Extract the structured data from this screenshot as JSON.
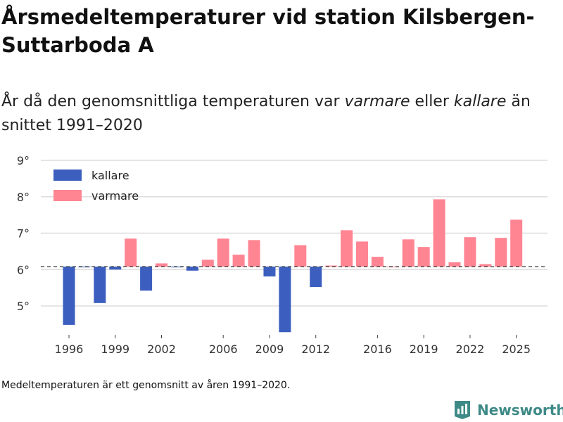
{
  "header": {
    "title": "Årsmedeltemperaturer vid station Kilsbergen-Suttarboda A",
    "subtitle_prefix": "År då den genomsnittliga temperaturen var ",
    "subtitle_warm": "varmare",
    "subtitle_mid": " eller ",
    "subtitle_cold": "kallare",
    "subtitle_suffix": " än snittet 1991–2020"
  },
  "footnote": "Medeltemperaturen är ett genomsnitt av åren 1991–2020.",
  "brand": {
    "name": "Newsworthy",
    "icon": "newsworthy-logo-icon"
  },
  "colors": {
    "cold": "#3c5fbf",
    "warm": "#ff8593",
    "grid": "#dddddd",
    "baseline": "#333333"
  },
  "chart_data": {
    "type": "bar",
    "baseline": 6.08,
    "ylim": [
      4.2,
      9.2
    ],
    "yticks": [
      5,
      6,
      7,
      8,
      9
    ],
    "ytick_labels": [
      "5°",
      "6°",
      "7°",
      "8°",
      "9°"
    ],
    "xticks": [
      1996,
      1999,
      2002,
      2006,
      2009,
      2012,
      2016,
      2019,
      2022,
      2025
    ],
    "legend": [
      {
        "key": "cold",
        "label": "kallare"
      },
      {
        "key": "warm",
        "label": "varmare"
      }
    ],
    "years": [
      1996,
      1997,
      1998,
      1999,
      2000,
      2001,
      2002,
      2003,
      2004,
      2005,
      2006,
      2007,
      2008,
      2009,
      2010,
      2011,
      2012,
      2013,
      2014,
      2015,
      2016,
      2017,
      2018,
      2019,
      2020,
      2021,
      2022,
      2023,
      2024,
      2025
    ],
    "values": [
      4.48,
      6.06,
      5.08,
      6.0,
      6.85,
      5.42,
      6.17,
      6.06,
      5.97,
      6.27,
      6.85,
      6.41,
      6.81,
      5.81,
      4.28,
      6.67,
      5.52,
      6.11,
      7.08,
      6.77,
      6.35,
      6.08,
      6.83,
      6.62,
      7.93,
      6.2,
      6.89,
      6.15,
      6.87,
      7.37
    ]
  }
}
